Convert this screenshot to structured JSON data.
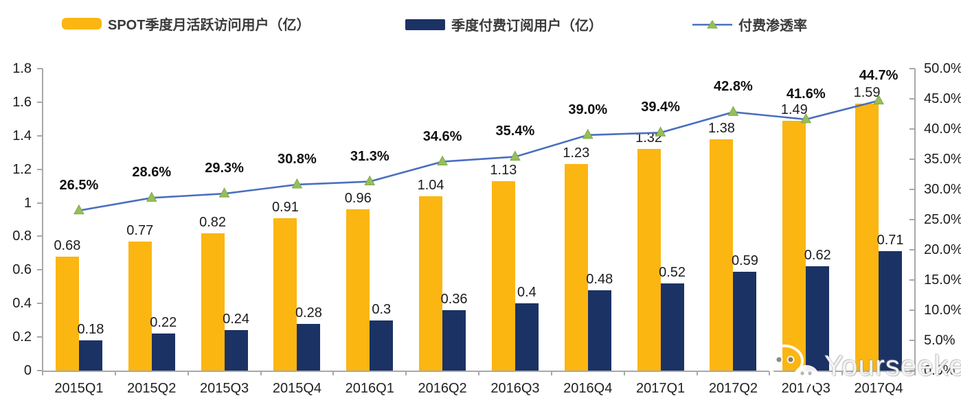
{
  "legend": {
    "items": [
      {
        "label": "SPOT季度月活跃访问用户（亿）",
        "swatch": "yellow-bar"
      },
      {
        "label": "季度付费订阅用户（亿）",
        "swatch": "navy-bar"
      },
      {
        "label": "付费渗透率",
        "swatch": "line-marker"
      }
    ]
  },
  "colors": {
    "mau_bar": "#FBB612",
    "paid_bar": "#1B3264",
    "line": "#4A6FBF",
    "marker": "#97BE58",
    "marker_edge": "#7FA94A",
    "axis": "#A8A8A8",
    "text": "#1C1C1C"
  },
  "chart_data": {
    "type": "bar",
    "title": "",
    "categories": [
      "2015Q1",
      "2015Q2",
      "2015Q3",
      "2015Q4",
      "2016Q1",
      "2016Q2",
      "2016Q3",
      "2016Q4",
      "2017Q1",
      "2017Q2",
      "2017Q3",
      "2017Q4"
    ],
    "series": [
      {
        "name": "SPOT季度月活跃访问用户（亿）",
        "type": "bar",
        "axis": "left",
        "values": [
          0.68,
          0.77,
          0.82,
          0.91,
          0.96,
          1.04,
          1.13,
          1.23,
          1.32,
          1.38,
          1.49,
          1.59
        ],
        "labels": [
          "0.68",
          "0.77",
          "0.82",
          "0.91",
          "0.96",
          "1.04",
          "1.13",
          "1.23",
          "1.32",
          "1.38",
          "1.49",
          "1.59"
        ]
      },
      {
        "name": "季度付费订阅用户（亿）",
        "type": "bar",
        "axis": "left",
        "values": [
          0.18,
          0.22,
          0.24,
          0.28,
          0.3,
          0.36,
          0.4,
          0.48,
          0.52,
          0.59,
          0.62,
          0.71
        ],
        "labels": [
          "0.18",
          "0.22",
          "0.24",
          "0.28",
          "0.3",
          "0.36",
          "0.4",
          "0.48",
          "0.52",
          "0.59",
          "0.62",
          "0.71"
        ]
      },
      {
        "name": "付费渗透率",
        "type": "line",
        "axis": "right",
        "marker": "triangle",
        "values": [
          26.5,
          28.6,
          29.3,
          30.8,
          31.3,
          34.6,
          35.4,
          39.0,
          39.4,
          42.8,
          41.6,
          44.7
        ],
        "labels": [
          "26.5%",
          "28.6%",
          "29.3%",
          "30.8%",
          "31.3%",
          "34.6%",
          "35.4%",
          "39.0%",
          "39.4%",
          "42.8%",
          "41.6%",
          "44.7%"
        ]
      }
    ],
    "left_axis": {
      "min": 0,
      "max": 1.8,
      "ticks": [
        "0",
        "0.2",
        "0.4",
        "0.6",
        "0.8",
        "1",
        "1.2",
        "1.4",
        "1.6",
        "1.8"
      ]
    },
    "right_axis": {
      "min": 0,
      "max": 50,
      "ticks": [
        "0.0%",
        "5.0%",
        "10.0%",
        "15.0%",
        "20.0%",
        "25.0%",
        "30.0%",
        "35.0%",
        "40.0%",
        "45.0%",
        "50.0%"
      ]
    },
    "grid": false,
    "legend_position": "top"
  },
  "watermark": {
    "text": "Yourseeker",
    "icon": "wechat-icon"
  }
}
